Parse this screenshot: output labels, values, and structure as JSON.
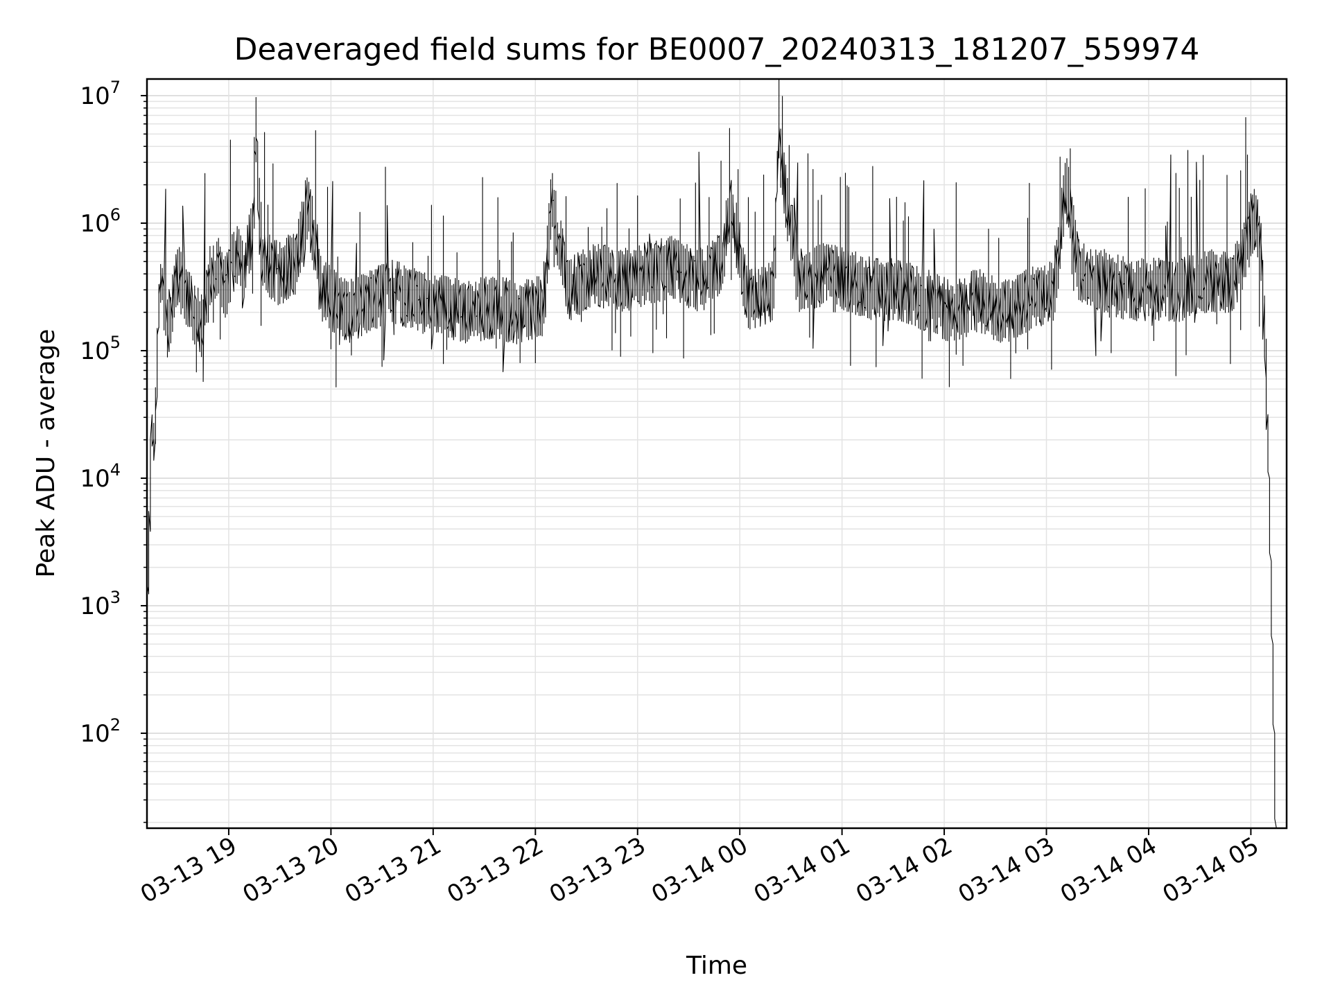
{
  "chart_data": {
    "type": "line",
    "title": "Deaveraged field sums for BE0007_20240313_181207_559974",
    "xlabel": "Time",
    "ylabel": "Peak ADU - average",
    "yscale": "log",
    "ylim": [
      18,
      13500000
    ],
    "xlim": [
      "2024-03-13 18:12",
      "2024-03-14 05:21"
    ],
    "grid": true,
    "line_color": "#000000",
    "x_ticks": [
      {
        "t": "2024-03-13 19:00",
        "label": "03-13 19"
      },
      {
        "t": "2024-03-13 20:00",
        "label": "03-13 20"
      },
      {
        "t": "2024-03-13 21:00",
        "label": "03-13 21"
      },
      {
        "t": "2024-03-13 22:00",
        "label": "03-13 22"
      },
      {
        "t": "2024-03-13 23:00",
        "label": "03-13 23"
      },
      {
        "t": "2024-03-14 00:00",
        "label": "03-14 00"
      },
      {
        "t": "2024-03-14 01:00",
        "label": "03-14 01"
      },
      {
        "t": "2024-03-14 02:00",
        "label": "03-14 02"
      },
      {
        "t": "2024-03-14 03:00",
        "label": "03-14 03"
      },
      {
        "t": "2024-03-14 04:00",
        "label": "03-14 04"
      },
      {
        "t": "2024-03-14 05:00",
        "label": "03-14 05"
      }
    ],
    "y_ticks": [
      {
        "value": 100,
        "base": "10",
        "exp": "2"
      },
      {
        "value": 1000,
        "base": "10",
        "exp": "3"
      },
      {
        "value": 10000,
        "base": "10",
        "exp": "4"
      },
      {
        "value": 100000,
        "base": "10",
        "exp": "5"
      },
      {
        "value": 1000000,
        "base": "10",
        "exp": "6"
      },
      {
        "value": 10000000,
        "base": "10",
        "exp": "7"
      }
    ],
    "series": [
      {
        "x": [
          "2024-03-13 18:12",
          "2024-03-13 18:13",
          "2024-03-13 18:14",
          "2024-03-13 18:15",
          "2024-03-13 18:17",
          "2024-03-13 18:19",
          "2024-03-13 18:20",
          "2024-03-13 18:22",
          "2024-03-13 18:25",
          "2024-03-13 18:28",
          "2024-03-13 18:30",
          "2024-03-13 18:35",
          "2024-03-13 18:40",
          "2024-03-13 18:42",
          "2024-03-13 18:45",
          "2024-03-13 18:50",
          "2024-03-13 18:55",
          "2024-03-13 18:58",
          "2024-03-13 19:05",
          "2024-03-13 19:10",
          "2024-03-13 19:15",
          "2024-03-13 19:16",
          "2024-03-13 19:20",
          "2024-03-13 19:30",
          "2024-03-13 19:40",
          "2024-03-13 19:47",
          "2024-03-13 19:55",
          "2024-03-13 20:10",
          "2024-03-13 20:25",
          "2024-03-13 20:35",
          "2024-03-13 20:50",
          "2024-03-13 21:05",
          "2024-03-13 21:20",
          "2024-03-13 21:35",
          "2024-03-13 21:50",
          "2024-03-13 22:05",
          "2024-03-13 22:10",
          "2024-03-13 22:20",
          "2024-03-13 22:35",
          "2024-03-13 22:50",
          "2024-03-13 23:05",
          "2024-03-13 23:20",
          "2024-03-13 23:35",
          "2024-03-13 23:50",
          "2024-03-13 23:55",
          "2024-03-14 00:05",
          "2024-03-14 00:20",
          "2024-03-14 00:23",
          "2024-03-14 00:35",
          "2024-03-14 00:50",
          "2024-03-14 01:05",
          "2024-03-14 01:20",
          "2024-03-14 01:35",
          "2024-03-14 01:50",
          "2024-03-14 02:05",
          "2024-03-14 02:20",
          "2024-03-14 02:35",
          "2024-03-14 02:50",
          "2024-03-14 03:05",
          "2024-03-14 03:12",
          "2024-03-14 03:20",
          "2024-03-14 03:35",
          "2024-03-14 03:50",
          "2024-03-14 04:05",
          "2024-03-14 04:20",
          "2024-03-14 04:35",
          "2024-03-14 04:50",
          "2024-03-14 04:55",
          "2024-03-14 05:00",
          "2024-03-14 05:03",
          "2024-03-14 05:05",
          "2024-03-14 05:07",
          "2024-03-14 05:09",
          "2024-03-14 05:11",
          "2024-03-14 05:13",
          "2024-03-14 05:14",
          "2024-03-14 05:15"
        ],
        "values": [
          150,
          1200,
          5000,
          25000,
          18000,
          150000,
          350000,
          300000,
          150000,
          250000,
          400000,
          300000,
          200000,
          180000,
          150000,
          400000,
          500000,
          300000,
          600000,
          400000,
          1000000,
          6000000,
          500000,
          400000,
          500000,
          1500000,
          300000,
          200000,
          250000,
          300000,
          250000,
          220000,
          200000,
          220000,
          200000,
          220000,
          1500000,
          300000,
          400000,
          350000,
          400000,
          450000,
          350000,
          500000,
          1500000,
          250000,
          300000,
          4000000,
          350000,
          400000,
          350000,
          300000,
          300000,
          250000,
          200000,
          250000,
          200000,
          250000,
          300000,
          2000000,
          400000,
          350000,
          300000,
          300000,
          300000,
          350000,
          350000,
          500000,
          900000,
          1100000,
          800000,
          400000,
          100000,
          10000,
          500,
          100,
          18
        ]
      }
    ]
  }
}
